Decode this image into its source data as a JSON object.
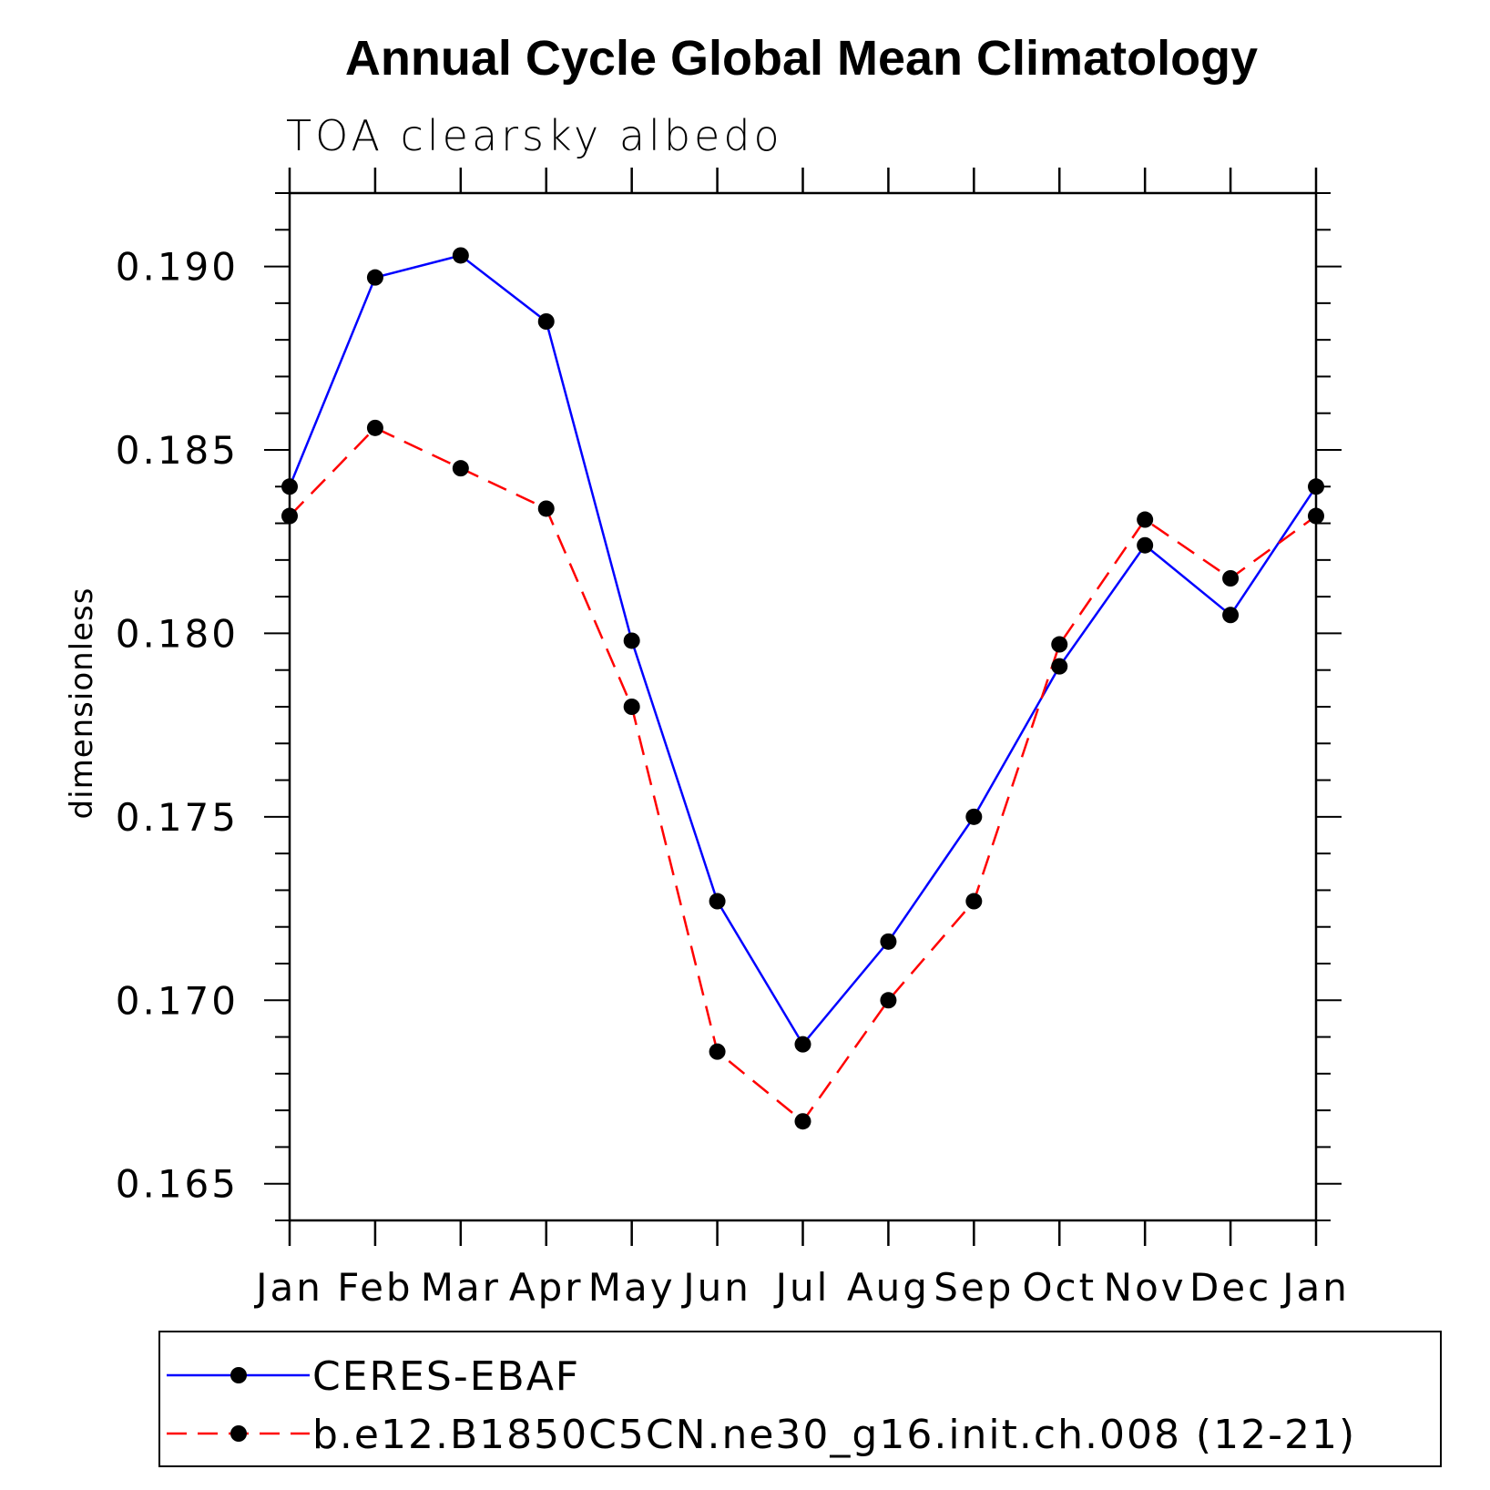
{
  "chart_data": {
    "type": "line",
    "title": "Annual Cycle Global Mean Climatology",
    "subtitle": "TOA clearsky albedo",
    "xlabel": "",
    "ylabel": "dimensionless",
    "categories": [
      "Jan",
      "Feb",
      "Mar",
      "Apr",
      "May",
      "Jun",
      "Jul",
      "Aug",
      "Sep",
      "Oct",
      "Nov",
      "Dec",
      "Jan"
    ],
    "ylim": [
      0.164,
      0.192
    ],
    "yticks": [
      0.165,
      0.17,
      0.175,
      0.18,
      0.185,
      0.19
    ],
    "ytick_labels": [
      "0.165",
      "0.170",
      "0.175",
      "0.180",
      "0.185",
      "0.190"
    ],
    "series": [
      {
        "name": "CERES-EBAF",
        "color": "#0000ff",
        "dash": "solid",
        "values": [
          0.184,
          0.1897,
          0.1903,
          0.1885,
          0.1798,
          0.1727,
          0.1688,
          0.1716,
          0.175,
          0.1791,
          0.1824,
          0.1805,
          0.184
        ]
      },
      {
        "name": "b.e12.B1850C5CN.ne30_g16.init.ch.008 (12-21)",
        "color": "#ff0000",
        "dash": "dashed",
        "values": [
          0.1832,
          0.1856,
          0.1845,
          0.1834,
          0.178,
          0.1686,
          0.1667,
          0.17,
          0.1727,
          0.1797,
          0.1831,
          0.1815,
          0.1832
        ]
      }
    ],
    "legend_position": "bottom"
  }
}
